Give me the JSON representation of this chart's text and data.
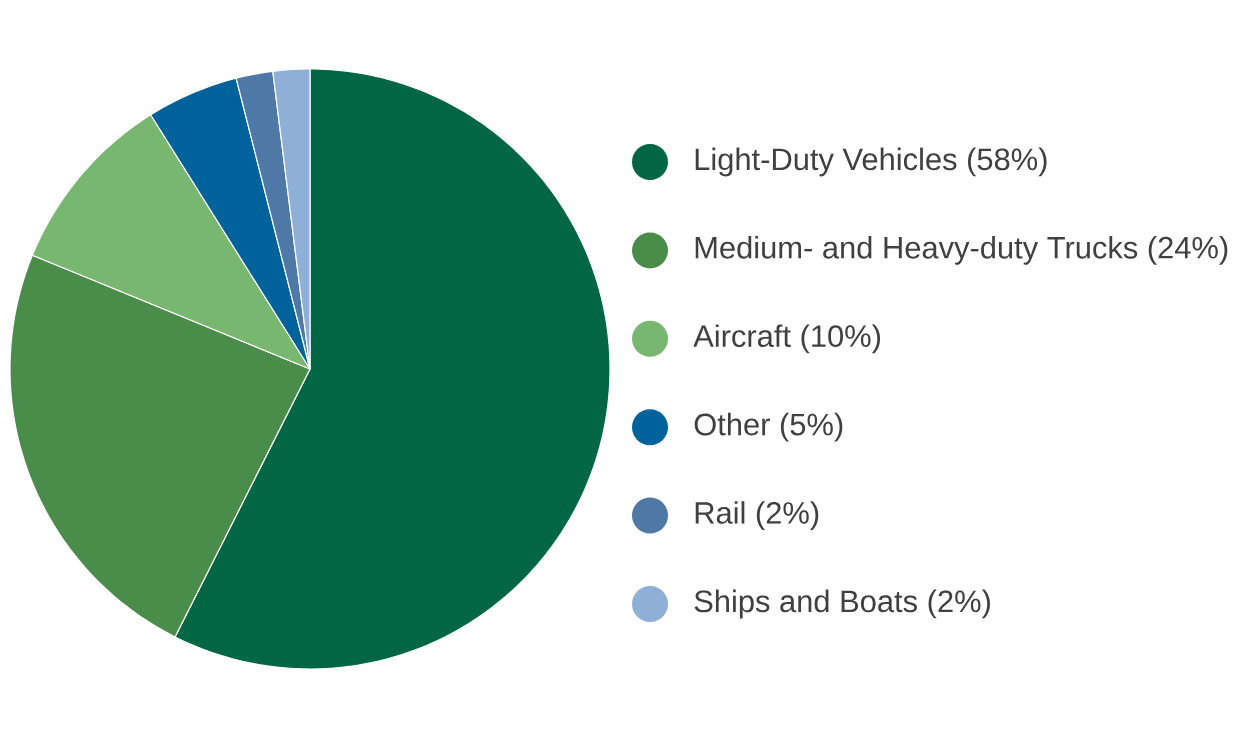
{
  "chart_data": {
    "type": "pie",
    "categories": [
      "Light-Duty Vehicles (58%)",
      "Medium- and Heavy-duty Trucks (24%)",
      "Aircraft (10%)",
      "Other (5%)",
      "Rail (2%)",
      "Ships and Boats (2%)"
    ],
    "values": [
      58,
      24,
      10,
      5,
      2,
      2
    ],
    "colors": [
      "#006643",
      "#4a8c4a",
      "#77b76f",
      "#00629b",
      "#4e79a7",
      "#8fb0d6"
    ],
    "legend": "right"
  }
}
